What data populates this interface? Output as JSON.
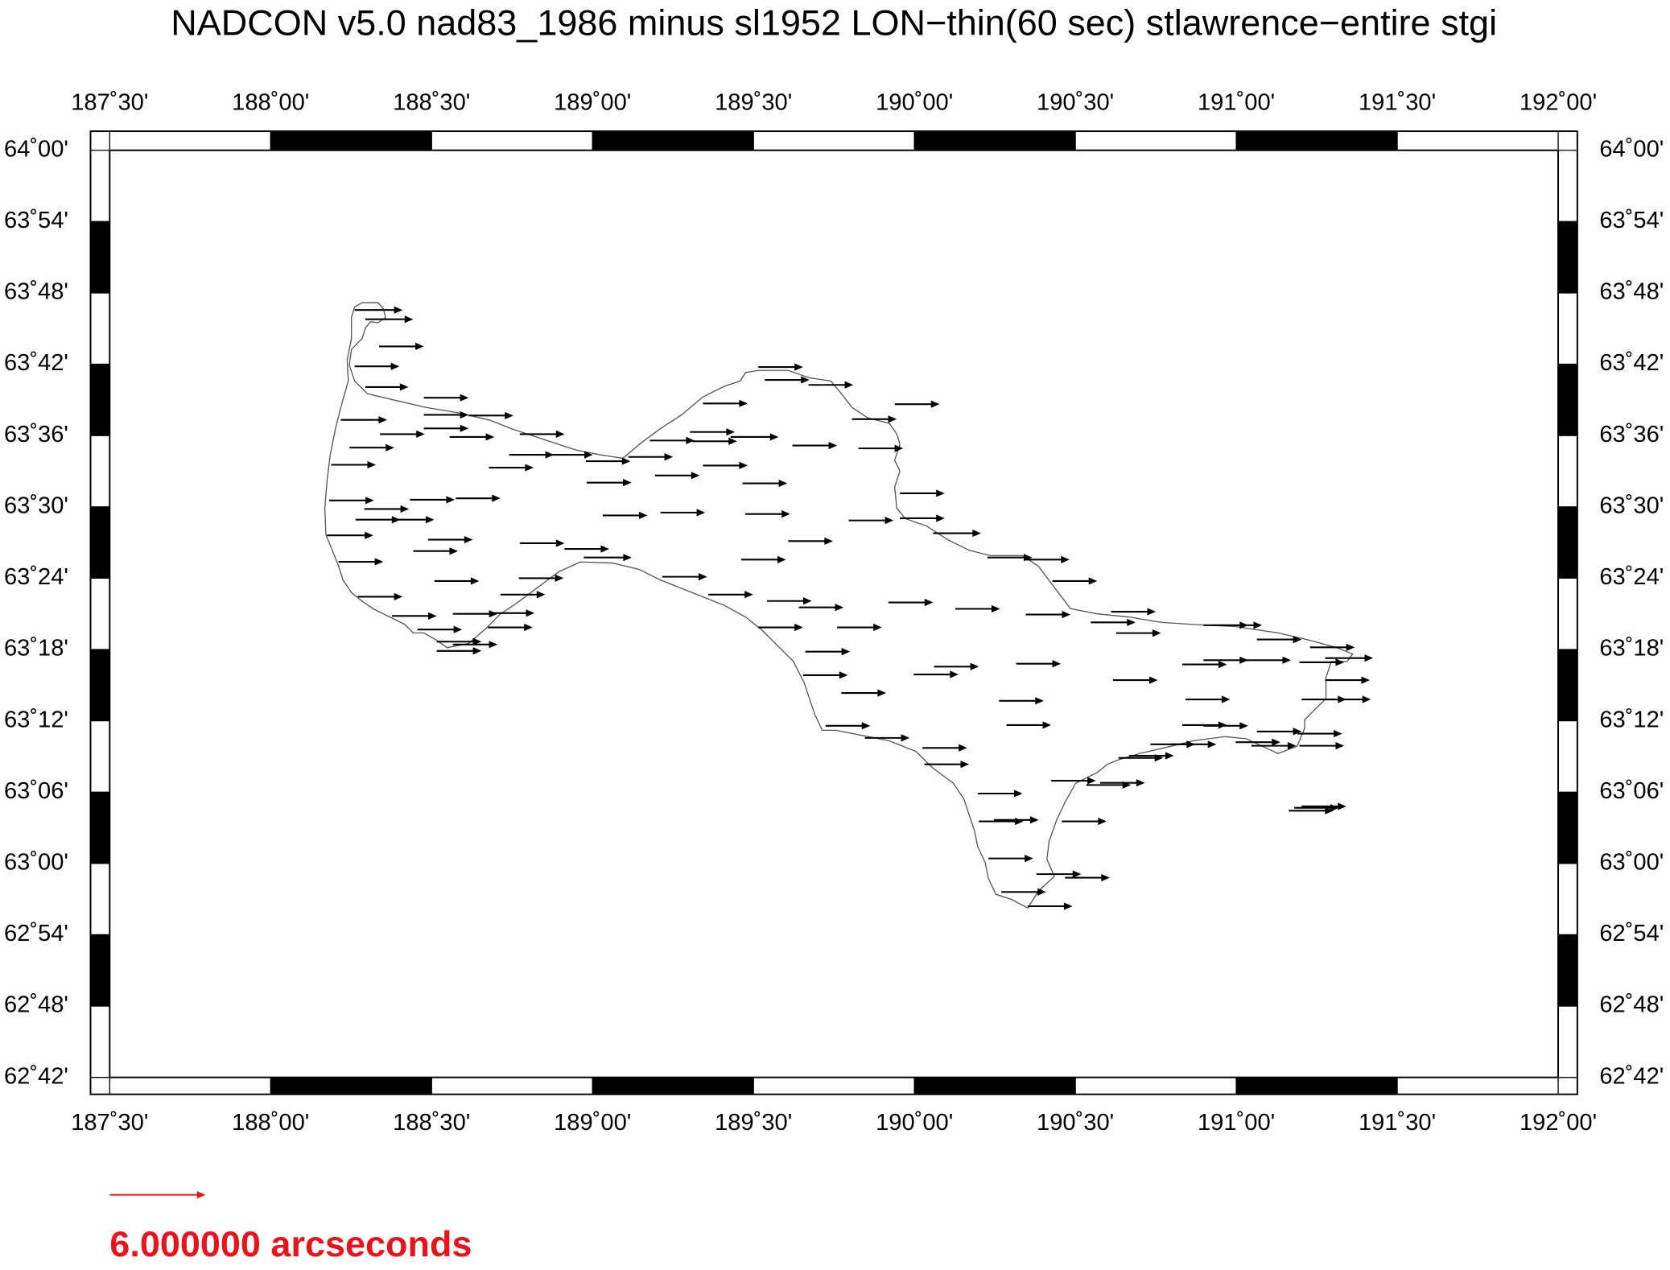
{
  "chart_data": {
    "type": "vector",
    "title": "NADCON v5.0 nad83_1986 minus sl1952 LON−thin(60 sec) stlawrence−entire stgi",
    "xlim": [
      187.5,
      192
    ],
    "ylim": [
      62.7,
      64
    ],
    "xticks": [
      {
        "value": 187.5,
        "label": "187˚30'"
      },
      {
        "value": 188,
        "label": "188˚00'"
      },
      {
        "value": 188.5,
        "label": "188˚30'"
      },
      {
        "value": 189,
        "label": "189˚00'"
      },
      {
        "value": 189.5,
        "label": "189˚30'"
      },
      {
        "value": 190,
        "label": "190˚00'"
      },
      {
        "value": 190.5,
        "label": "190˚30'"
      },
      {
        "value": 191,
        "label": "191˚00'"
      },
      {
        "value": 191.5,
        "label": "191˚30'"
      },
      {
        "value": 192,
        "label": "192˚00'"
      }
    ],
    "yticks": [
      {
        "value": 62.7,
        "label": "62˚42'"
      },
      {
        "value": 62.8,
        "label": "62˚48'"
      },
      {
        "value": 62.9,
        "label": "62˚54'"
      },
      {
        "value": 63.0,
        "label": "63˚00'"
      },
      {
        "value": 63.1,
        "label": "63˚06'"
      },
      {
        "value": 63.2,
        "label": "63˚12'"
      },
      {
        "value": 63.3,
        "label": "63˚18'"
      },
      {
        "value": 63.4,
        "label": "63˚24'"
      },
      {
        "value": 63.5,
        "label": "63˚30'"
      },
      {
        "value": 63.6,
        "label": "63˚36'"
      },
      {
        "value": 63.7,
        "label": "63˚42'"
      },
      {
        "value": 63.8,
        "label": "63˚48'"
      },
      {
        "value": 63.9,
        "label": "63˚54'"
      },
      {
        "value": 64.0,
        "label": "64˚00'"
      }
    ],
    "color": "#000000",
    "x": [
      188.261,
      188.294,
      188.337,
      188.261,
      188.294,
      188.476,
      188.476,
      188.615,
      188.218,
      188.34,
      188.476,
      188.556,
      188.245,
      188.188,
      188.678,
      188.741,
      188.774,
      188.867,
      188.182,
      188.433,
      188.575,
      188.291,
      188.264,
      188.384,
      188.175,
      188.489,
      188.211,
      188.443,
      188.774,
      188.913,
      188.973,
      188.509,
      188.771,
      188.271,
      188.714,
      188.377,
      188.566,
      188.681,
      188.675,
      188.456,
      188.516,
      188.566,
      188.516,
      188.979,
      188.982,
      189.032,
      189.111,
      189.178,
      189.194,
      189.211,
      189.303,
      189.31,
      189.343,
      189.343,
      189.429,
      189.466,
      189.475,
      189.462,
      189.217,
      189.36,
      189.515,
      189.535,
      189.671,
      189.806,
      189.939,
      189.621,
      189.826,
      189.608,
      189.796,
      189.955,
      189.955,
      190.058,
      189.542,
      189.641,
      189.515,
      189.76,
      189.661,
      189.654,
      189.773,
      189.919,
      190.127,
      190.061,
      189.998,
      190.227,
      190.343,
      190.429,
      190.346,
      190.316,
      190.263,
      190.286,
      190.611,
      190.548,
      190.627,
      190.898,
      190.931,
      191.064,
      190.617,
      190.832,
      190.898,
      191.031,
      191.196,
      191.276,
      191.229,
      191.276,
      191.203,
      191.279,
      190.842,
      190.832,
      190.898,
      191.064,
      191.19,
      190.733,
      190.799,
      190.998,
      191.047,
      190.634,
      190.667,
      191.196,
      190.425,
      190.534,
      190.577,
      190.197,
      190.025,
      190.031,
      189.846,
      189.724,
      190.2,
      190.247,
      190.458,
      190.23,
      190.379,
      190.468,
      190.27,
      190.352,
      191.163,
      191.18,
      191.203
    ],
    "y": [
      63.776,
      63.763,
      63.725,
      63.697,
      63.668,
      63.653,
      63.629,
      63.628,
      63.622,
      63.602,
      63.61,
      63.598,
      63.583,
      63.559,
      63.555,
      63.573,
      63.602,
      63.573,
      63.509,
      63.51,
      63.512,
      63.497,
      63.482,
      63.482,
      63.46,
      63.454,
      63.423,
      63.438,
      63.449,
      63.441,
      63.429,
      63.396,
      63.4,
      63.374,
      63.377,
      63.347,
      63.35,
      63.351,
      63.331,
      63.328,
      63.311,
      63.307,
      63.298,
      63.564,
      63.534,
      63.488,
      63.57,
      63.593,
      63.544,
      63.492,
      63.605,
      63.592,
      63.558,
      63.645,
      63.598,
      63.533,
      63.49,
      63.426,
      63.402,
      63.377,
      63.696,
      63.678,
      63.671,
      63.623,
      63.644,
      63.586,
      63.582,
      63.452,
      63.481,
      63.519,
      63.484,
      63.463,
      63.368,
      63.359,
      63.331,
      63.331,
      63.297,
      63.264,
      63.239,
      63.366,
      63.357,
      63.276,
      63.265,
      63.429,
      63.426,
      63.396,
      63.349,
      63.28,
      63.228,
      63.194,
      63.353,
      63.338,
      63.323,
      63.334,
      63.334,
      63.314,
      63.257,
      63.279,
      63.285,
      63.285,
      63.282,
      63.288,
      63.303,
      63.257,
      63.23,
      63.23,
      63.23,
      63.194,
      63.193,
      63.185,
      63.182,
      63.167,
      63.167,
      63.17,
      63.165,
      63.148,
      63.151,
      63.165,
      63.116,
      63.11,
      63.113,
      63.098,
      63.162,
      63.139,
      63.176,
      63.193,
      63.059,
      63.061,
      63.059,
      63.007,
      62.985,
      62.98,
      62.96,
      62.94,
      63.074,
      63.078,
      63.08
    ],
    "values": [
      3.0,
      3.0,
      2.8,
      2.8,
      2.7,
      2.8,
      2.8,
      2.8,
      2.9,
      2.8,
      2.8,
      2.8,
      2.8,
      2.8,
      2.8,
      2.8,
      2.8,
      2.7,
      2.8,
      2.8,
      2.8,
      2.8,
      2.8,
      2.5,
      2.9,
      2.8,
      2.8,
      2.8,
      2.8,
      2.8,
      3.0,
      2.8,
      2.8,
      2.8,
      2.8,
      2.8,
      2.8,
      2.8,
      2.8,
      2.8,
      2.8,
      2.8,
      2.8,
      2.8,
      2.8,
      2.8,
      2.8,
      2.8,
      2.8,
      2.8,
      2.8,
      2.8,
      2.8,
      2.8,
      3.0,
      2.8,
      2.8,
      2.8,
      2.8,
      2.8,
      2.8,
      2.8,
      2.8,
      2.8,
      2.8,
      2.8,
      2.8,
      2.8,
      2.8,
      2.8,
      2.8,
      3.0,
      2.8,
      2.8,
      2.8,
      2.8,
      2.8,
      2.8,
      2.8,
      2.8,
      2.8,
      2.8,
      2.8,
      2.8,
      2.8,
      2.8,
      2.8,
      2.8,
      2.8,
      2.8,
      2.8,
      2.8,
      2.8,
      2.8,
      3.0,
      2.8,
      2.8,
      2.8,
      2.8,
      2.8,
      2.8,
      3.0,
      2.8,
      2.8,
      2.8,
      2.8,
      2.8,
      2.8,
      2.8,
      2.8,
      2.8,
      2.8,
      2.8,
      2.8,
      2.8,
      2.8,
      2.8,
      2.8,
      2.8,
      2.8,
      2.8,
      2.8,
      2.8,
      2.8,
      2.8,
      2.8,
      2.8,
      2.8,
      2.8,
      2.8,
      2.8,
      2.8,
      2.8,
      2.8,
      2.8,
      2.8,
      2.8
    ],
    "reference": {
      "value": 6,
      "label": "6.000000 arcseconds",
      "color": "#e8141b"
    }
  }
}
